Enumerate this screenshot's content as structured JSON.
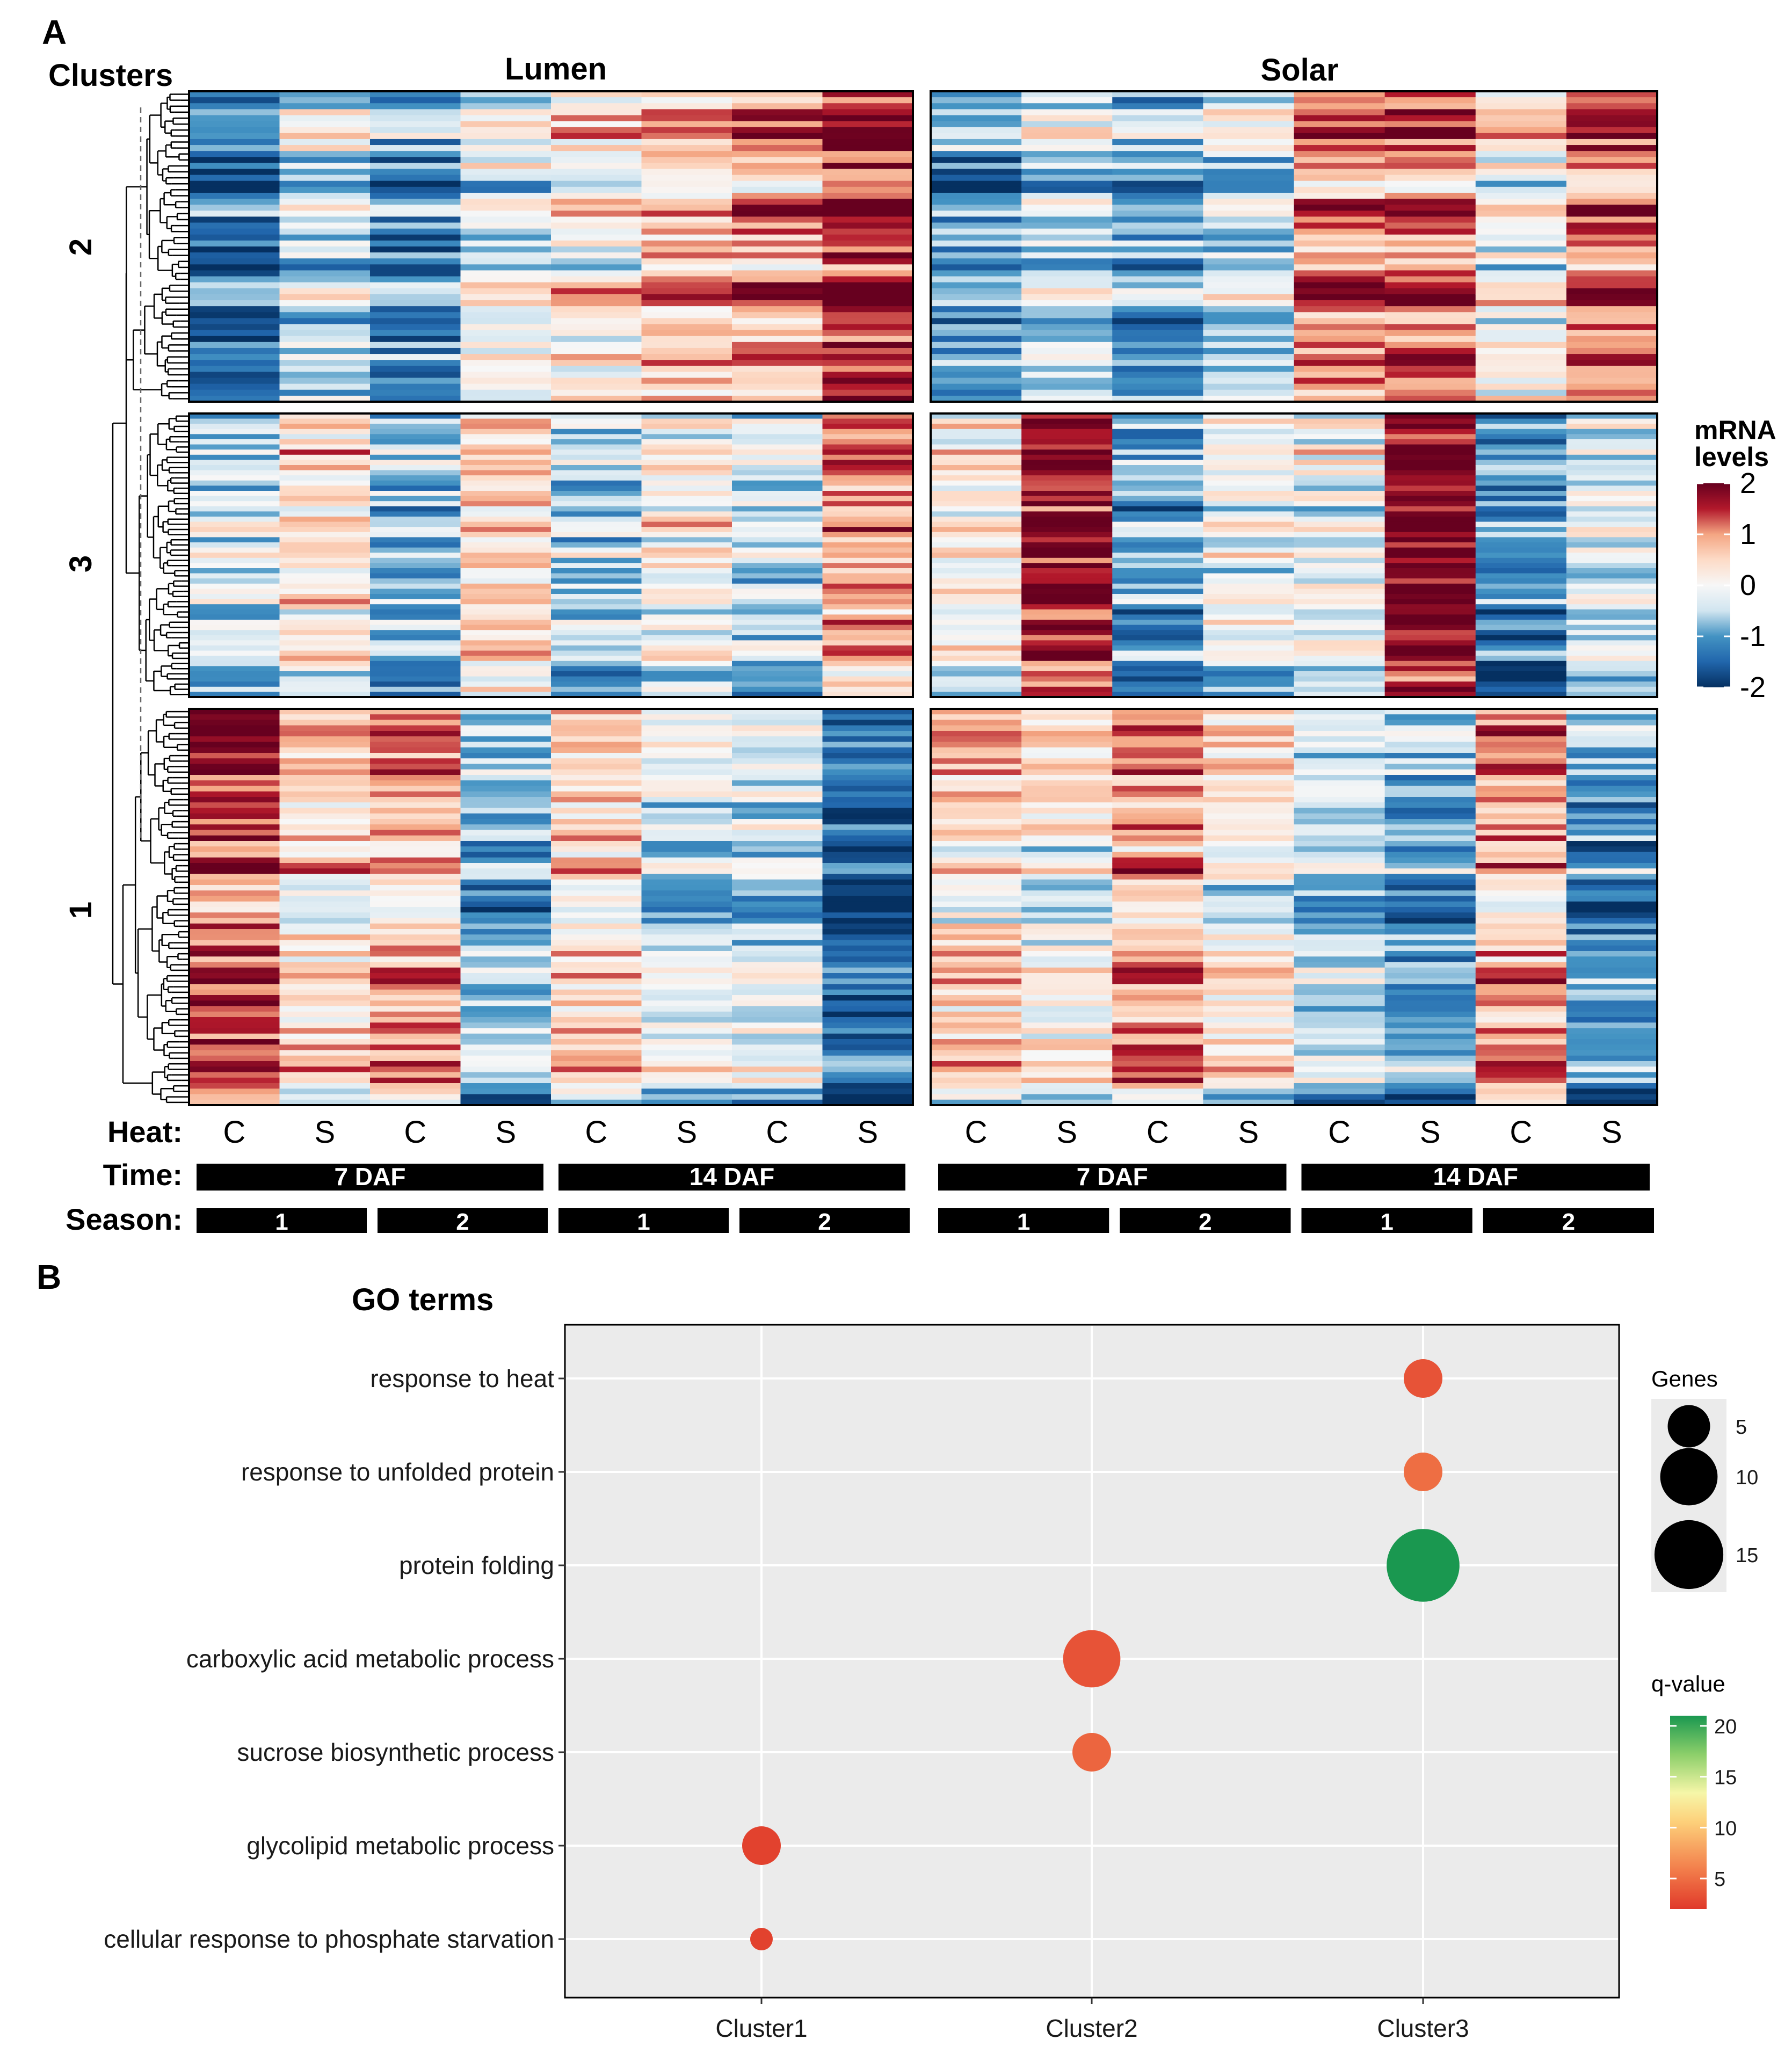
{
  "panel_a": {
    "label": "A",
    "clusters_title": "Clusters",
    "tissues": [
      "Lumen",
      "Solar"
    ],
    "cluster_order": [
      "2",
      "3",
      "1"
    ],
    "legend_title_1": "mRNA",
    "legend_title_2": "levels",
    "legend_ticks": [
      "2",
      "1",
      "0",
      "-1",
      "-2"
    ],
    "legend_min": -2,
    "legend_max": 2,
    "row_labels": {
      "heat": "Heat:",
      "time": "Time:",
      "season": "Season:"
    },
    "heat_labels": [
      "C",
      "S",
      "C",
      "S",
      "C",
      "S",
      "C",
      "S"
    ],
    "time_labels": [
      "7 DAF",
      "14 DAF"
    ],
    "season_labels": [
      "1",
      "2",
      "1",
      "2"
    ],
    "colors": {
      "low": "#053061",
      "mid": "#f7f7f7",
      "high": "#67001f",
      "bar": "#000000"
    }
  },
  "panel_b": {
    "label": "B",
    "title": "GO terms",
    "size_legend_title": "Genes",
    "color_legend_title": "q-value",
    "size_ticks": [
      "5",
      "10",
      "15"
    ],
    "color_ticks": [
      "20",
      "15",
      "10",
      "5"
    ],
    "panel_bg": "#ebebeb"
  },
  "chart_data": {
    "type": "scatter",
    "title": "GO terms",
    "x_categories": [
      "Cluster1",
      "Cluster2",
      "Cluster3"
    ],
    "y_categories": [
      "response to heat",
      "response to unfolded protein",
      "protein folding",
      "carboxylic acid metabolic process",
      "sucrose biosynthetic process",
      "glycolipid metabolic process",
      "cellular response to phosphate starvation"
    ],
    "points": [
      {
        "term": "response to heat",
        "cluster": "Cluster3",
        "genes": 4,
        "qvalue": 3.5
      },
      {
        "term": "response to unfolded protein",
        "cluster": "Cluster3",
        "genes": 4,
        "qvalue": 5
      },
      {
        "term": "protein folding",
        "cluster": "Cluster3",
        "genes": 17,
        "qvalue": 21
      },
      {
        "term": "carboxylic acid metabolic process",
        "cluster": "Cluster2",
        "genes": 10,
        "qvalue": 3.5
      },
      {
        "term": "sucrose biosynthetic process",
        "cluster": "Cluster2",
        "genes": 4,
        "qvalue": 4.5
      },
      {
        "term": "glycolipid metabolic process",
        "cluster": "Cluster1",
        "genes": 4,
        "qvalue": 2.5
      },
      {
        "term": "cellular response to phosphate starvation",
        "cluster": "Cluster1",
        "genes": 1,
        "qvalue": 2.5
      }
    ],
    "size_legend": [
      5,
      10,
      15
    ],
    "color_scale": {
      "min": 2,
      "max": 21,
      "low": "#e0392a",
      "mid": "#fee08b",
      "high": "#1a9850",
      "ticks": [
        5,
        10,
        15,
        20
      ]
    },
    "grid": true,
    "legend_position": "right"
  }
}
